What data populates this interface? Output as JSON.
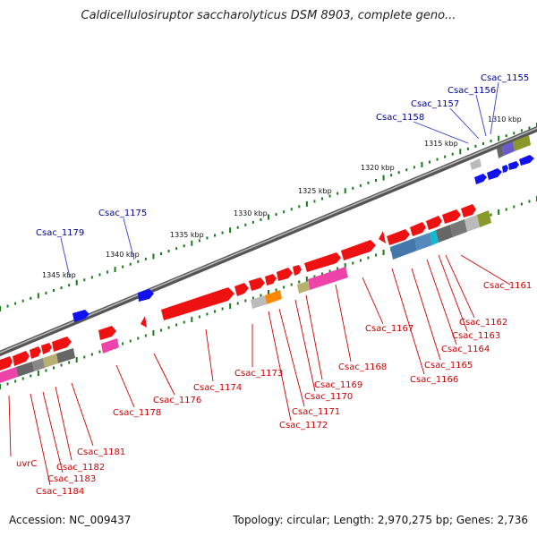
{
  "title": "Caldicellulosiruptor saccharolyticus DSM 8903, complete geno...",
  "footer": {
    "accession": "Accession: NC_009437",
    "topology": "Topology: circular; Length: 2,970,275 bp; Genes: 2,736"
  },
  "colors": {
    "gene_red": "#ee1111",
    "gene_blue": "#1111ee",
    "label_red": "#cc0000",
    "label_blue": "#000099",
    "backbone": "#777777",
    "tick_green": "#1a7a1a",
    "magenta": "#ee44aa",
    "orange": "#ff8800",
    "olive": "#8a9a2a",
    "khaki": "#b8b070",
    "gray_dark": "#666666",
    "gray_light": "#bbbbbb",
    "steel_blue": "#4477aa",
    "cyan": "#11bbcc"
  },
  "kbp_labels": [
    "1310 kbp",
    "1315 kbp",
    "1320 kbp",
    "1325 kbp",
    "1330 kbp",
    "1335 kbp",
    "1340 kbp",
    "1345 kbp"
  ],
  "genes_top": [
    "Csac_1155",
    "Csac_1156",
    "Csac_1157",
    "Csac_1158",
    "Csac_1175",
    "Csac_1179"
  ],
  "genes_bottom": [
    "Csac_1161",
    "Csac_1162",
    "Csac_1163",
    "Csac_1164",
    "Csac_1165",
    "Csac_1166",
    "Csac_1167",
    "Csac_1168",
    "Csac_1169",
    "Csac_1170",
    "Csac_1171",
    "Csac_1172",
    "Csac_1173",
    "Csac_1174",
    "Csac_1176",
    "Csac_1178",
    "Csac_1181",
    "Csac_1182",
    "Csac_1183",
    "Csac_1184",
    "uvrC"
  ]
}
